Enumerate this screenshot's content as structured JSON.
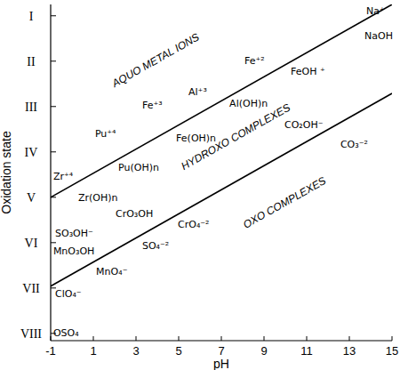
{
  "chart_data": {
    "type": "line",
    "x_label": "pH",
    "y_label": "Oxidation state",
    "xlim": [
      -1,
      15
    ],
    "xticks": [
      -1,
      1,
      3,
      5,
      7,
      9,
      11,
      13,
      15
    ],
    "ylim": [
      8.16,
      0.75
    ],
    "yticks": [
      {
        "value": 1,
        "label": "I"
      },
      {
        "value": 2,
        "label": "II"
      },
      {
        "value": 3,
        "label": "III"
      },
      {
        "value": 4,
        "label": "IV"
      },
      {
        "value": 5,
        "label": "V"
      },
      {
        "value": 6,
        "label": "VI"
      },
      {
        "value": 7,
        "label": "VII"
      },
      {
        "value": 8,
        "label": "VIII"
      }
    ],
    "grid": false,
    "x": [
      -1,
      15
    ],
    "series": [
      {
        "color": "#000000",
        "values": [
          5.0,
          0.75
        ]
      },
      {
        "color": "#000000",
        "values": [
          6.96,
          2.71
        ]
      }
    ],
    "regions": [
      {
        "text": "AQUO METAL IONS",
        "x": 3.92,
        "y": 1.98
      },
      {
        "text": "HYDROXO COMPLEXES",
        "x": 7.67,
        "y": 3.67
      },
      {
        "text": "OXO COMPLEXES",
        "x": 9.96,
        "y": 5.12
      }
    ],
    "labels": [
      {
        "text": "Na⁺",
        "x": 13.79,
        "y": 0.88
      },
      {
        "text": "NaOH",
        "x": 13.71,
        "y": 1.43
      },
      {
        "text": "Fe⁺²",
        "x": 8.08,
        "y": 1.98
      },
      {
        "text": "FeOH ⁺",
        "x": 10.25,
        "y": 2.22
      },
      {
        "text": "Al⁺³",
        "x": 5.46,
        "y": 2.67
      },
      {
        "text": "Fe⁺³",
        "x": 3.29,
        "y": 2.96
      },
      {
        "text": "Al(OH)n",
        "x": 7.38,
        "y": 2.92
      },
      {
        "text": "Pu⁺⁴",
        "x": 1.08,
        "y": 3.59
      },
      {
        "text": "Fe(OH)n",
        "x": 4.88,
        "y": 3.69
      },
      {
        "text": "Pu(OH)n",
        "x": 2.17,
        "y": 4.33
      },
      {
        "text": "Zr⁺⁴",
        "x": -0.88,
        "y": 4.53
      },
      {
        "text": "Zr(OH)n",
        "x": 0.29,
        "y": 5.0
      },
      {
        "text": "CO₂OH⁻",
        "x": 9.96,
        "y": 3.39
      },
      {
        "text": "CO₃⁻²",
        "x": 12.58,
        "y": 3.82
      },
      {
        "text": "CrO₃OH",
        "x": 2.04,
        "y": 5.35
      },
      {
        "text": "SO₃OH⁻",
        "x": -0.79,
        "y": 5.78
      },
      {
        "text": "MnO₃OH",
        "x": -0.88,
        "y": 6.18
      },
      {
        "text": "MnO₄⁻",
        "x": 1.13,
        "y": 6.63
      },
      {
        "text": "ClO₄⁻",
        "x": -0.79,
        "y": 7.12
      },
      {
        "text": "OSO₄",
        "x": -0.88,
        "y": 7.98
      },
      {
        "text": "CrO₄⁻²",
        "x": 4.96,
        "y": 5.59
      },
      {
        "text": "SO₄⁻²",
        "x": 3.29,
        "y": 6.06
      }
    ]
  }
}
